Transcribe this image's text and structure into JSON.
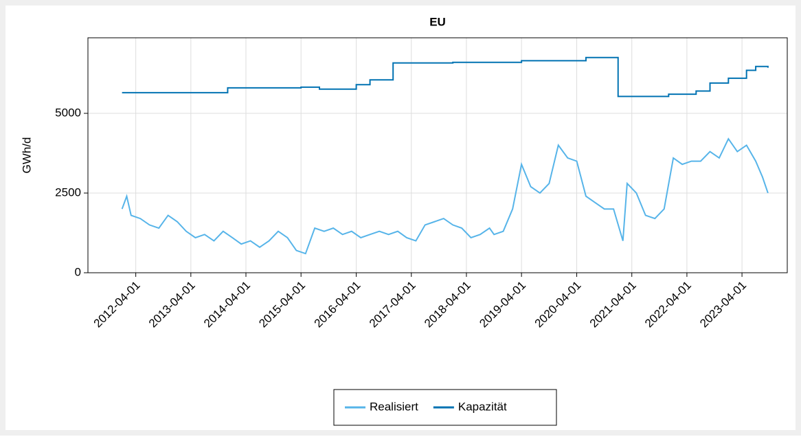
{
  "chart_data": {
    "type": "line",
    "title": "EU",
    "ylabel": "GWh/d",
    "xlim": [
      "2011-05-20",
      "2024-01-26"
    ],
    "ylim": [
      0,
      7370
    ],
    "xticks": [
      "2012-04-01",
      "2013-04-01",
      "2014-04-01",
      "2015-04-01",
      "2016-04-01",
      "2017-04-01",
      "2018-04-01",
      "2019-04-01",
      "2020-04-01",
      "2021-04-01",
      "2022-04-01",
      "2023-04-01"
    ],
    "yticks": [
      0,
      2500,
      5000
    ],
    "grid": true,
    "legend": "bottom",
    "series": [
      {
        "name": "Realisiert",
        "color": "#56b4e9",
        "x": [
          "2012-01-01",
          "2012-02-01",
          "2012-03-01",
          "2012-05-01",
          "2012-07-01",
          "2012-09-01",
          "2012-11-01",
          "2013-01-01",
          "2013-03-01",
          "2013-05-01",
          "2013-07-01",
          "2013-09-01",
          "2013-11-01",
          "2014-01-01",
          "2014-03-01",
          "2014-05-01",
          "2014-07-01",
          "2014-09-01",
          "2014-11-01",
          "2015-01-01",
          "2015-03-01",
          "2015-05-01",
          "2015-07-01",
          "2015-09-01",
          "2015-11-01",
          "2016-01-01",
          "2016-03-01",
          "2016-05-01",
          "2016-07-01",
          "2016-09-01",
          "2016-11-01",
          "2017-01-01",
          "2017-03-01",
          "2017-05-01",
          "2017-07-01",
          "2017-09-01",
          "2017-11-01",
          "2018-01-01",
          "2018-03-01",
          "2018-05-01",
          "2018-07-01",
          "2018-09-01",
          "2018-10-01",
          "2018-12-01",
          "2019-02-01",
          "2019-04-01",
          "2019-06-01",
          "2019-08-01",
          "2019-10-01",
          "2019-12-01",
          "2020-02-01",
          "2020-04-01",
          "2020-06-01",
          "2020-08-01",
          "2020-10-01",
          "2020-12-01",
          "2021-02-01",
          "2021-03-01",
          "2021-05-01",
          "2021-07-01",
          "2021-09-01",
          "2021-11-01",
          "2022-01-01",
          "2022-03-01",
          "2022-05-01",
          "2022-07-01",
          "2022-09-01",
          "2022-11-01",
          "2023-01-01",
          "2023-03-01",
          "2023-05-01",
          "2023-07-01",
          "2023-08-15",
          "2023-09-20"
        ],
        "values": [
          2000,
          2400,
          1800,
          1700,
          1500,
          1400,
          1800,
          1600,
          1300,
          1100,
          1200,
          1000,
          1300,
          1100,
          900,
          1000,
          800,
          1000,
          1300,
          1100,
          700,
          600,
          1400,
          1300,
          1400,
          1200,
          1300,
          1100,
          1200,
          1300,
          1200,
          1300,
          1100,
          1000,
          1500,
          1600,
          1700,
          1500,
          1400,
          1100,
          1200,
          1400,
          1200,
          1300,
          2000,
          3400,
          2700,
          2500,
          2800,
          4000,
          3600,
          3500,
          2400,
          2200,
          2000,
          2000,
          1000,
          2800,
          2500,
          1800,
          1700,
          2000,
          3600,
          3400,
          3500,
          3500,
          3800,
          3600,
          4200,
          3800,
          4000,
          3500,
          3000,
          2500
        ]
      },
      {
        "name": "Kapazität",
        "color": "#0072b2",
        "step": "post",
        "x": [
          "2012-01-01",
          "2013-12-01",
          "2015-04-01",
          "2015-08-01",
          "2016-04-01",
          "2016-07-01",
          "2016-12-01",
          "2018-01-01",
          "2019-04-01",
          "2020-06-01",
          "2020-12-31",
          "2021-12-01",
          "2022-06-01",
          "2022-09-01",
          "2023-01-01",
          "2023-05-01",
          "2023-07-01",
          "2023-09-20"
        ],
        "values": [
          5650,
          5800,
          5820,
          5760,
          5900,
          6050,
          6580,
          6600,
          6650,
          6750,
          5530,
          5600,
          5700,
          5950,
          6100,
          6350,
          6470,
          6430
        ]
      }
    ]
  }
}
